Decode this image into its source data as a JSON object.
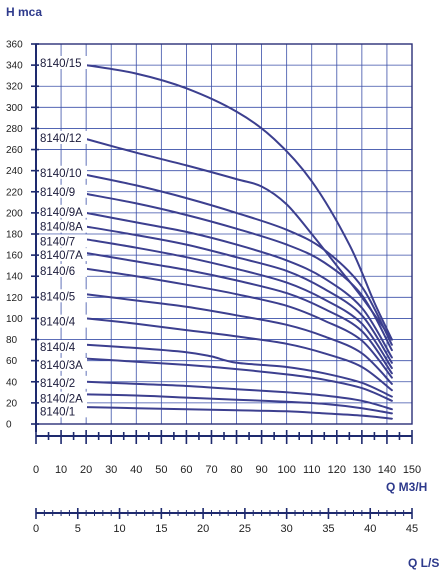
{
  "chart_data": {
    "type": "line",
    "y_axis_title": "H mca",
    "x_axis_title": "Q  M3/H",
    "x2_axis_title": "Q L/S",
    "y_ticks": [
      "0",
      "20",
      "40",
      "60",
      "80",
      "100",
      "120",
      "140",
      "160",
      "180",
      "200",
      "220",
      "240",
      "260",
      "280",
      "300",
      "320",
      "340",
      "360"
    ],
    "x_ticks": [
      "0",
      "10",
      "20",
      "30",
      "40",
      "50",
      "60",
      "70",
      "80",
      "90",
      "100",
      "110",
      "120",
      "130",
      "140",
      "150"
    ],
    "x2_ticks": [
      "0",
      "5",
      "10",
      "15",
      "20",
      "25",
      "30",
      "35",
      "40",
      "45"
    ],
    "xlim": [
      0,
      150
    ],
    "ylim": [
      0,
      360
    ],
    "x2lim": [
      0,
      45
    ],
    "grid": true,
    "series_color": "#3c3f8f",
    "grid_color": "#3a4fa8",
    "series": [
      {
        "name": "8140/15",
        "points": [
          [
            20,
            340
          ],
          [
            40,
            332
          ],
          [
            60,
            318
          ],
          [
            80,
            296
          ],
          [
            95,
            270
          ],
          [
            110,
            230
          ],
          [
            125,
            170
          ],
          [
            135,
            115
          ],
          [
            142,
            80
          ]
        ]
      },
      {
        "name": "8140/12",
        "points": [
          [
            20,
            270
          ],
          [
            40,
            257
          ],
          [
            60,
            245
          ],
          [
            80,
            232
          ],
          [
            90,
            225
          ],
          [
            100,
            208
          ],
          [
            110,
            180
          ],
          [
            120,
            150
          ],
          [
            130,
            120
          ],
          [
            142,
            80
          ]
        ]
      },
      {
        "name": "8140/10",
        "points": [
          [
            20,
            236
          ],
          [
            40,
            226
          ],
          [
            60,
            214
          ],
          [
            80,
            200
          ],
          [
            100,
            184
          ],
          [
            115,
            165
          ],
          [
            130,
            130
          ],
          [
            142,
            75
          ]
        ]
      },
      {
        "name": "8140/9",
        "points": [
          [
            20,
            218
          ],
          [
            40,
            209
          ],
          [
            60,
            198
          ],
          [
            80,
            185
          ],
          [
            100,
            170
          ],
          [
            115,
            153
          ],
          [
            130,
            122
          ],
          [
            142,
            70
          ]
        ]
      },
      {
        "name": "8140/9A",
        "points": [
          [
            20,
            200
          ],
          [
            40,
            191
          ],
          [
            60,
            182
          ],
          [
            80,
            170
          ],
          [
            100,
            155
          ],
          [
            115,
            138
          ],
          [
            130,
            110
          ],
          [
            142,
            63
          ]
        ]
      },
      {
        "name": "8140/8A",
        "points": [
          [
            20,
            187
          ],
          [
            40,
            179
          ],
          [
            60,
            170
          ],
          [
            80,
            158
          ],
          [
            100,
            145
          ],
          [
            115,
            128
          ],
          [
            130,
            103
          ],
          [
            142,
            58
          ]
        ]
      },
      {
        "name": "8140/7",
        "points": [
          [
            20,
            175
          ],
          [
            40,
            167
          ],
          [
            60,
            158
          ],
          [
            80,
            147
          ],
          [
            100,
            134
          ],
          [
            115,
            118
          ],
          [
            130,
            95
          ],
          [
            142,
            53
          ]
        ]
      },
      {
        "name": "8140/7A",
        "points": [
          [
            20,
            162
          ],
          [
            40,
            154
          ],
          [
            60,
            146
          ],
          [
            80,
            136
          ],
          [
            100,
            124
          ],
          [
            115,
            109
          ],
          [
            130,
            88
          ],
          [
            142,
            48
          ]
        ]
      },
      {
        "name": "8140/6",
        "points": [
          [
            20,
            147
          ],
          [
            40,
            140
          ],
          [
            60,
            132
          ],
          [
            80,
            123
          ],
          [
            100,
            112
          ],
          [
            115,
            98
          ],
          [
            130,
            79
          ],
          [
            142,
            44
          ]
        ]
      },
      {
        "name": "8140/5",
        "points": [
          [
            20,
            123
          ],
          [
            40,
            117
          ],
          [
            60,
            111
          ],
          [
            80,
            103
          ],
          [
            100,
            94
          ],
          [
            115,
            83
          ],
          [
            130,
            67
          ],
          [
            142,
            38
          ]
        ]
      },
      {
        "name": "8140/4",
        "points": [
          [
            20,
            100
          ],
          [
            40,
            95
          ],
          [
            60,
            89
          ],
          [
            80,
            83
          ],
          [
            100,
            76
          ],
          [
            115,
            67
          ],
          [
            130,
            54
          ],
          [
            142,
            32
          ]
        ]
      },
      {
        "name": "8140/4",
        "points": [
          [
            20,
            75
          ],
          [
            40,
            72
          ],
          [
            60,
            68
          ],
          [
            70,
            64
          ],
          [
            80,
            58
          ],
          [
            100,
            54
          ],
          [
            115,
            48
          ],
          [
            130,
            39
          ],
          [
            142,
            26
          ]
        ]
      },
      {
        "name": "8140/3A",
        "points": [
          [
            20,
            62
          ],
          [
            40,
            59
          ],
          [
            60,
            56
          ],
          [
            80,
            52
          ],
          [
            100,
            47
          ],
          [
            115,
            42
          ],
          [
            130,
            34
          ],
          [
            142,
            22
          ]
        ]
      },
      {
        "name": "8140/2",
        "points": [
          [
            20,
            40
          ],
          [
            40,
            38
          ],
          [
            60,
            36
          ],
          [
            80,
            33
          ],
          [
            100,
            30
          ],
          [
            115,
            27
          ],
          [
            130,
            22
          ],
          [
            142,
            14
          ]
        ]
      },
      {
        "name": "8140/2A",
        "points": [
          [
            20,
            28
          ],
          [
            40,
            27
          ],
          [
            60,
            25
          ],
          [
            80,
            23
          ],
          [
            100,
            21
          ],
          [
            115,
            19
          ],
          [
            130,
            15
          ],
          [
            142,
            10
          ]
        ]
      },
      {
        "name": "8140/1",
        "points": [
          [
            20,
            16
          ],
          [
            40,
            15
          ],
          [
            60,
            14
          ],
          [
            80,
            13
          ],
          [
            100,
            12
          ],
          [
            115,
            10
          ],
          [
            130,
            8
          ],
          [
            142,
            5
          ]
        ]
      }
    ],
    "label_y": [
      342,
      271,
      238,
      220,
      201,
      187,
      173,
      160,
      145,
      121,
      97,
      73,
      56,
      39,
      24,
      12
    ]
  }
}
